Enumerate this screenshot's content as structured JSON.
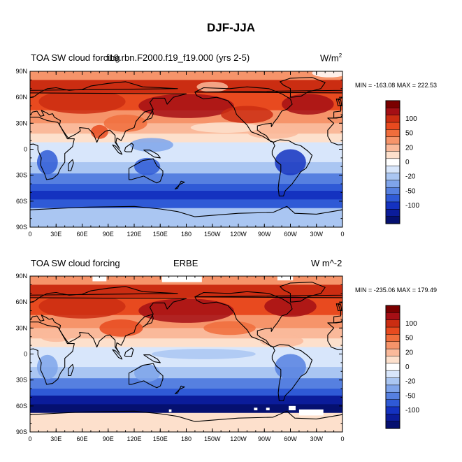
{
  "title": "DJF-JJA",
  "panels": [
    {
      "left_label": "TOA SW cloud forcing",
      "center_label": "f19.rbn.F2000.f19_f19.000 (yrs 2-5)",
      "right_label": "W/m",
      "right_label_sup": "2",
      "min_max": "MIN = -163.08 MAX = 222.53"
    },
    {
      "left_label": "TOA SW cloud forcing",
      "center_label": "ERBE",
      "right_label": "W m^-2",
      "right_label_sup": "",
      "min_max": "MIN = -235.06 MAX = 179.49"
    }
  ],
  "lat_ticks": [
    "90N",
    "60N",
    "30N",
    "0",
    "30S",
    "60S",
    "90S"
  ],
  "lon_ticks": [
    "0",
    "30E",
    "60E",
    "90E",
    "120E",
    "150E",
    "180",
    "150W",
    "120W",
    "90W",
    "60W",
    "30W",
    "0"
  ],
  "colorbar": {
    "labels": [
      "100",
      "50",
      "20",
      "0",
      "-20",
      "-50",
      "-100"
    ],
    "colors": [
      "#7a0000",
      "#a50f15",
      "#cb2d12",
      "#e84a1f",
      "#f06d3c",
      "#f6946a",
      "#fab99a",
      "#fde0cc",
      "#ffffff",
      "#d8e6fb",
      "#aac6f2",
      "#7fa4ea",
      "#5680e0",
      "#2f5ad6",
      "#1432c0",
      "#0b1c9a",
      "#051070"
    ]
  },
  "colors": {
    "land_outline": "#000000"
  }
}
